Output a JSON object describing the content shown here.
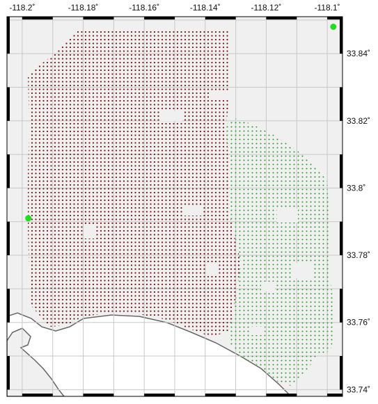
{
  "map": {
    "lon_range": [
      -118.205,
      -118.095
    ],
    "lat_range": [
      33.738,
      33.851
    ],
    "lon_ticks": [
      "-118.2˚",
      "-118.18˚",
      "-118.16˚",
      "-118.14˚",
      "-118.12˚",
      "-118.1˚"
    ],
    "lat_ticks": [
      "33.84˚",
      "33.82˚",
      "33.8˚",
      "33.78˚",
      "33.76˚",
      "33.74˚"
    ],
    "colors": {
      "cluster_a": "#7a1f1f",
      "cluster_b": "#2e9a2e",
      "marker": "#22dd22",
      "land": "#f0f0f0",
      "grid": "#c8c8c8",
      "frame": "#000000"
    },
    "markers": [
      {
        "name": "marker-north-east",
        "lon": -118.098,
        "lat": 33.848
      },
      {
        "name": "marker-west",
        "lon": -118.198,
        "lat": 33.791
      }
    ]
  }
}
